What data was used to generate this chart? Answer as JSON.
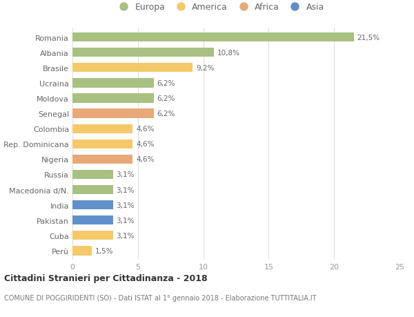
{
  "countries": [
    "Romania",
    "Albania",
    "Brasile",
    "Ucraina",
    "Moldova",
    "Senegal",
    "Colombia",
    "Rep. Dominicana",
    "Nigeria",
    "Russia",
    "Macedonia d/N.",
    "India",
    "Pakistan",
    "Cuba",
    "Perù"
  ],
  "values": [
    21.5,
    10.8,
    9.2,
    6.2,
    6.2,
    6.2,
    4.6,
    4.6,
    4.6,
    3.1,
    3.1,
    3.1,
    3.1,
    3.1,
    1.5
  ],
  "labels": [
    "21,5%",
    "10,8%",
    "9,2%",
    "6,2%",
    "6,2%",
    "6,2%",
    "4,6%",
    "4,6%",
    "4,6%",
    "3,1%",
    "3,1%",
    "3,1%",
    "3,1%",
    "3,1%",
    "1,5%"
  ],
  "continents": [
    "Europa",
    "Europa",
    "America",
    "Europa",
    "Europa",
    "Africa",
    "America",
    "America",
    "Africa",
    "Europa",
    "Europa",
    "Asia",
    "Asia",
    "America",
    "America"
  ],
  "continent_colors": {
    "Europa": "#a8c080",
    "America": "#f5c96a",
    "Africa": "#e8a878",
    "Asia": "#6090c8"
  },
  "legend_order": [
    "Europa",
    "America",
    "Africa",
    "Asia"
  ],
  "title": "Cittadini Stranieri per Cittadinanza - 2018",
  "subtitle": "COMUNE DI POGGIRIDENTI (SO) - Dati ISTAT al 1° gennaio 2018 - Elaborazione TUTTITALIA.IT",
  "xlim": [
    0,
    25
  ],
  "xticks": [
    0,
    5,
    10,
    15,
    20,
    25
  ],
  "background_color": "#ffffff",
  "grid_color": "#dddddd",
  "bar_height": 0.6
}
